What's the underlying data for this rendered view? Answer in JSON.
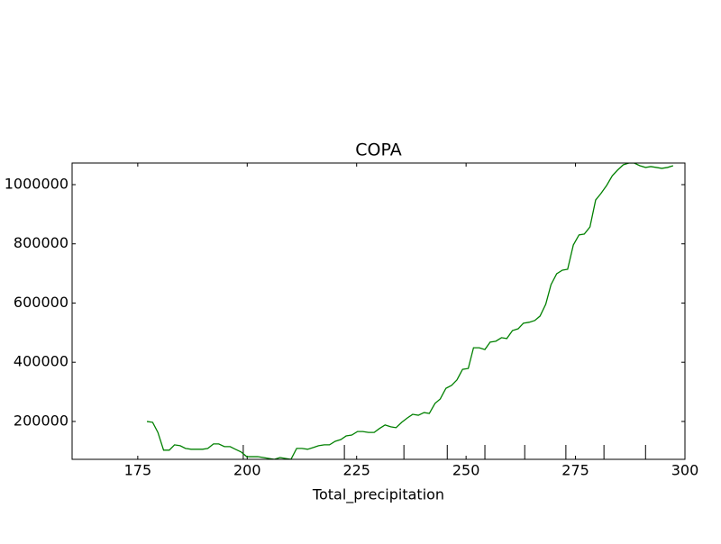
{
  "chart_data": {
    "type": "line",
    "title": "COPA",
    "x_label": "Total_precipitation",
    "x": [
      177.1,
      178.4,
      179.6,
      180.9,
      182.2,
      183.4,
      184.7,
      185.9,
      187.2,
      188.5,
      189.8,
      191.0,
      192.3,
      193.5,
      194.8,
      196.1,
      197.3,
      198.6,
      199.9,
      201.1,
      202.4,
      203.7,
      204.9,
      206.2,
      207.5,
      208.7,
      210.0,
      211.3,
      212.5,
      213.8,
      215.1,
      216.3,
      217.6,
      218.8,
      220.1,
      221.4,
      222.6,
      223.9,
      225.2,
      226.4,
      227.7,
      229.0,
      230.2,
      231.5,
      232.8,
      234.0,
      235.3,
      236.6,
      237.8,
      239.1,
      240.4,
      241.6,
      242.9,
      244.1,
      245.4,
      246.7,
      247.9,
      249.2,
      250.5,
      251.7,
      253.0,
      254.3,
      255.5,
      256.8,
      258.1,
      259.3,
      260.6,
      261.9,
      263.1,
      264.4,
      265.7,
      266.9,
      268.2,
      269.4,
      270.7,
      272.0,
      273.2,
      274.5,
      275.8,
      277.0,
      278.3,
      279.6,
      280.8,
      282.1,
      283.4,
      284.6,
      285.9,
      287.2,
      288.4,
      289.7,
      291.0,
      292.2,
      293.5,
      294.7,
      296.0,
      297.3
    ],
    "series": [
      {
        "color": "#008000",
        "values": [
          200000,
          197000,
          163000,
          103000,
          103000,
          121000,
          118000,
          109000,
          106000,
          106000,
          106000,
          109000,
          124000,
          124000,
          115000,
          115000,
          106000,
          97000,
          81000,
          81000,
          81000,
          78000,
          75000,
          72000,
          78000,
          75000,
          72000,
          109000,
          109000,
          106000,
          112000,
          118000,
          121000,
          121000,
          133000,
          139000,
          151000,
          154000,
          166000,
          166000,
          163000,
          163000,
          176000,
          188000,
          182000,
          179000,
          197000,
          212000,
          224000,
          221000,
          230000,
          227000,
          261000,
          276000,
          312000,
          322000,
          340000,
          376000,
          379000,
          449000,
          449000,
          443000,
          468000,
          471000,
          483000,
          480000,
          507000,
          513000,
          532000,
          535000,
          541000,
          556000,
          596000,
          662000,
          699000,
          711000,
          714000,
          796000,
          830000,
          833000,
          857000,
          948000,
          970000,
          997000,
          1030000,
          1049000,
          1067000,
          1073000,
          1073000,
          1064000,
          1058000,
          1061000,
          1058000,
          1055000,
          1058000,
          1064000
        ]
      }
    ],
    "vlines": {
      "color": "#000000",
      "x": [
        199.1,
        222.2,
        235.8,
        245.7,
        254.3,
        263.4,
        272.8,
        281.5,
        291.0
      ]
    },
    "xlim": [
      160,
      300
    ],
    "xticks": [
      175,
      200,
      225,
      250,
      275,
      300
    ],
    "ylim": [
      72000,
      1073000
    ],
    "yticks": [
      200000,
      400000,
      600000,
      800000,
      1000000
    ]
  }
}
